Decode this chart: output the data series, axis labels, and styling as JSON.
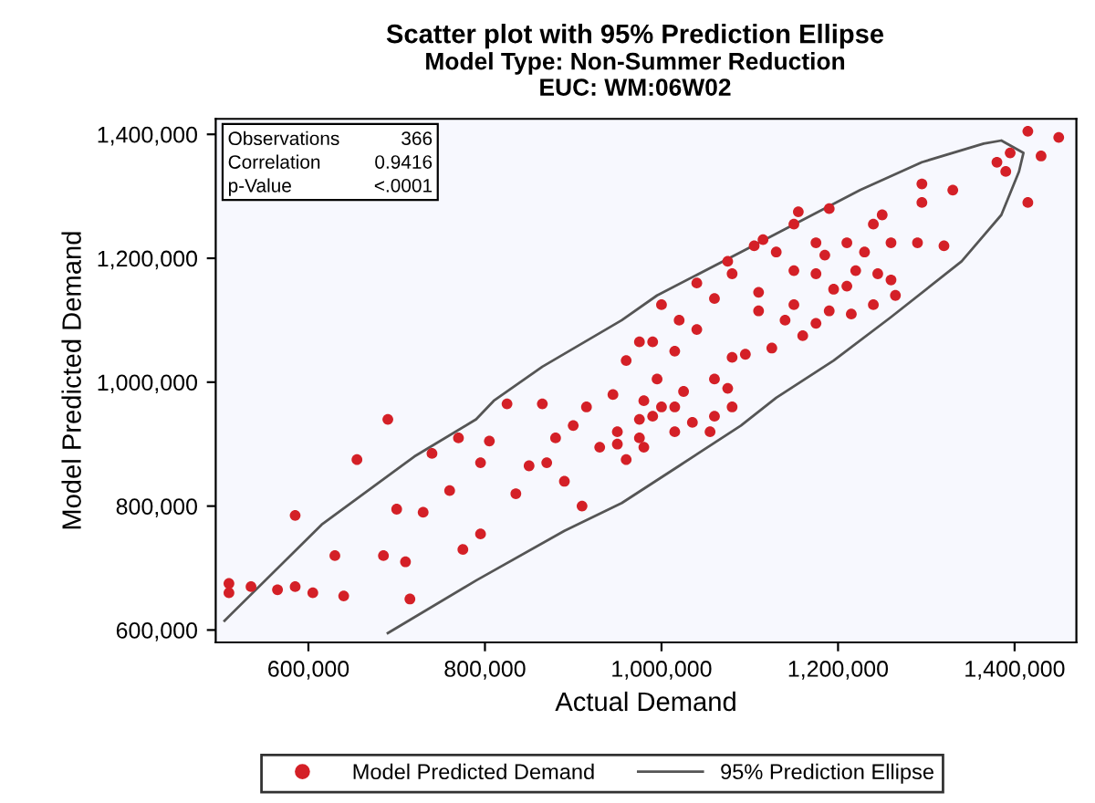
{
  "chart_data": {
    "type": "scatter",
    "title": "Scatter plot with 95% Prediction Ellipse",
    "subtitle": "Model Type: Non-Summer Reduction\nEUC: WM:06W02",
    "xlabel": "Actual Demand",
    "ylabel": "Model Predicted Demand",
    "annotations": [
      "Observations",
      "366",
      "Correlation",
      "0.9416",
      "p-Value",
      "<.0001"
    ],
    "xlim": [
      495000,
      1470000
    ],
    "ylim": [
      580000,
      1425000
    ],
    "xticks": [
      {
        "value": 600000,
        "label": "600,000"
      },
      {
        "value": 800000,
        "label": "800,000"
      },
      {
        "value": 1000000,
        "label": "1,000,000"
      },
      {
        "value": 1200000,
        "label": "1,200,000"
      },
      {
        "value": 1400000,
        "label": "1,400,000"
      }
    ],
    "yticks": [
      {
        "value": 600000,
        "label": "600,000"
      },
      {
        "value": 800000,
        "label": "800,000"
      },
      {
        "value": 1000000,
        "label": "1,000,000"
      },
      {
        "value": 1200000,
        "label": "1,200,000"
      },
      {
        "value": 1400000,
        "label": "1,400,000"
      }
    ],
    "grid": false,
    "legend": "bottom",
    "series": [
      {
        "name": "Model Predicted Demand",
        "marker": "circle",
        "color": "#d42027",
        "x": [
          510000,
          510000,
          535000,
          565000,
          585000,
          585000,
          605000,
          630000,
          640000,
          655000,
          690000,
          685000,
          700000,
          715000,
          710000,
          730000,
          740000,
          760000,
          770000,
          775000,
          795000,
          795000,
          805000,
          825000,
          835000,
          865000,
          870000,
          890000,
          910000,
          915000,
          945000,
          950000,
          975000,
          990000,
          1415000,
          1450000,
          1430000,
          1380000,
          1395000,
          1390000,
          1415000,
          1295000,
          1330000,
          1295000,
          1250000,
          1240000,
          1290000,
          1320000,
          1260000,
          1155000,
          1190000,
          1150000,
          1115000,
          1105000,
          1075000,
          1130000,
          1175000,
          1185000,
          1210000,
          1230000,
          1220000,
          1245000,
          1260000,
          1150000,
          1175000,
          1080000,
          1040000,
          1000000,
          1060000,
          1110000,
          1150000,
          1195000,
          1210000,
          1190000,
          1215000,
          1240000,
          1265000,
          1110000,
          1140000,
          1160000,
          1175000,
          1125000,
          1095000,
          1080000,
          1040000,
          1020000,
          990000,
          1015000,
          975000,
          1060000,
          1075000,
          1025000,
          995000,
          960000,
          1080000,
          1060000,
          1055000,
          1035000,
          1015000,
          1000000,
          980000,
          980000,
          960000,
          950000,
          975000,
          1015000,
          880000,
          900000,
          930000,
          850000
        ],
        "values": [
          675000,
          660000,
          670000,
          665000,
          785000,
          670000,
          660000,
          720000,
          655000,
          875000,
          940000,
          720000,
          795000,
          650000,
          710000,
          790000,
          885000,
          825000,
          910000,
          730000,
          870000,
          755000,
          905000,
          965000,
          820000,
          965000,
          870000,
          840000,
          800000,
          960000,
          980000,
          900000,
          940000,
          945000,
          1405000,
          1395000,
          1365000,
          1355000,
          1370000,
          1340000,
          1290000,
          1320000,
          1310000,
          1290000,
          1270000,
          1255000,
          1225000,
          1220000,
          1225000,
          1275000,
          1280000,
          1255000,
          1230000,
          1220000,
          1195000,
          1210000,
          1225000,
          1205000,
          1225000,
          1210000,
          1180000,
          1175000,
          1165000,
          1180000,
          1175000,
          1175000,
          1160000,
          1125000,
          1135000,
          1145000,
          1125000,
          1150000,
          1155000,
          1115000,
          1110000,
          1125000,
          1140000,
          1115000,
          1100000,
          1075000,
          1095000,
          1055000,
          1045000,
          1040000,
          1085000,
          1100000,
          1065000,
          1050000,
          1065000,
          1005000,
          990000,
          985000,
          1005000,
          1035000,
          960000,
          945000,
          920000,
          935000,
          960000,
          960000,
          970000,
          895000,
          875000,
          920000,
          910000,
          920000,
          910000,
          930000,
          895000,
          865000
        ]
      },
      {
        "name": "95% Prediction Ellipse",
        "type": "line",
        "color": "#555555",
        "line_style": "solid",
        "x": [
          505000,
          615000,
          720000,
          790000,
          810000,
          865000,
          955000,
          995000,
          1090000,
          1225000,
          1295000,
          1365000,
          1385000,
          1410000,
          1405000,
          1385000,
          1340000,
          1260000,
          1195000,
          1130000,
          1090000,
          1020000,
          955000,
          890000,
          790000,
          690000
        ],
        "values": [
          615000,
          770000,
          880000,
          940000,
          970000,
          1025000,
          1100000,
          1140000,
          1210000,
          1310000,
          1355000,
          1385000,
          1390000,
          1370000,
          1340000,
          1270000,
          1195000,
          1105000,
          1035000,
          975000,
          930000,
          865000,
          805000,
          760000,
          680000,
          595000
        ]
      }
    ]
  }
}
